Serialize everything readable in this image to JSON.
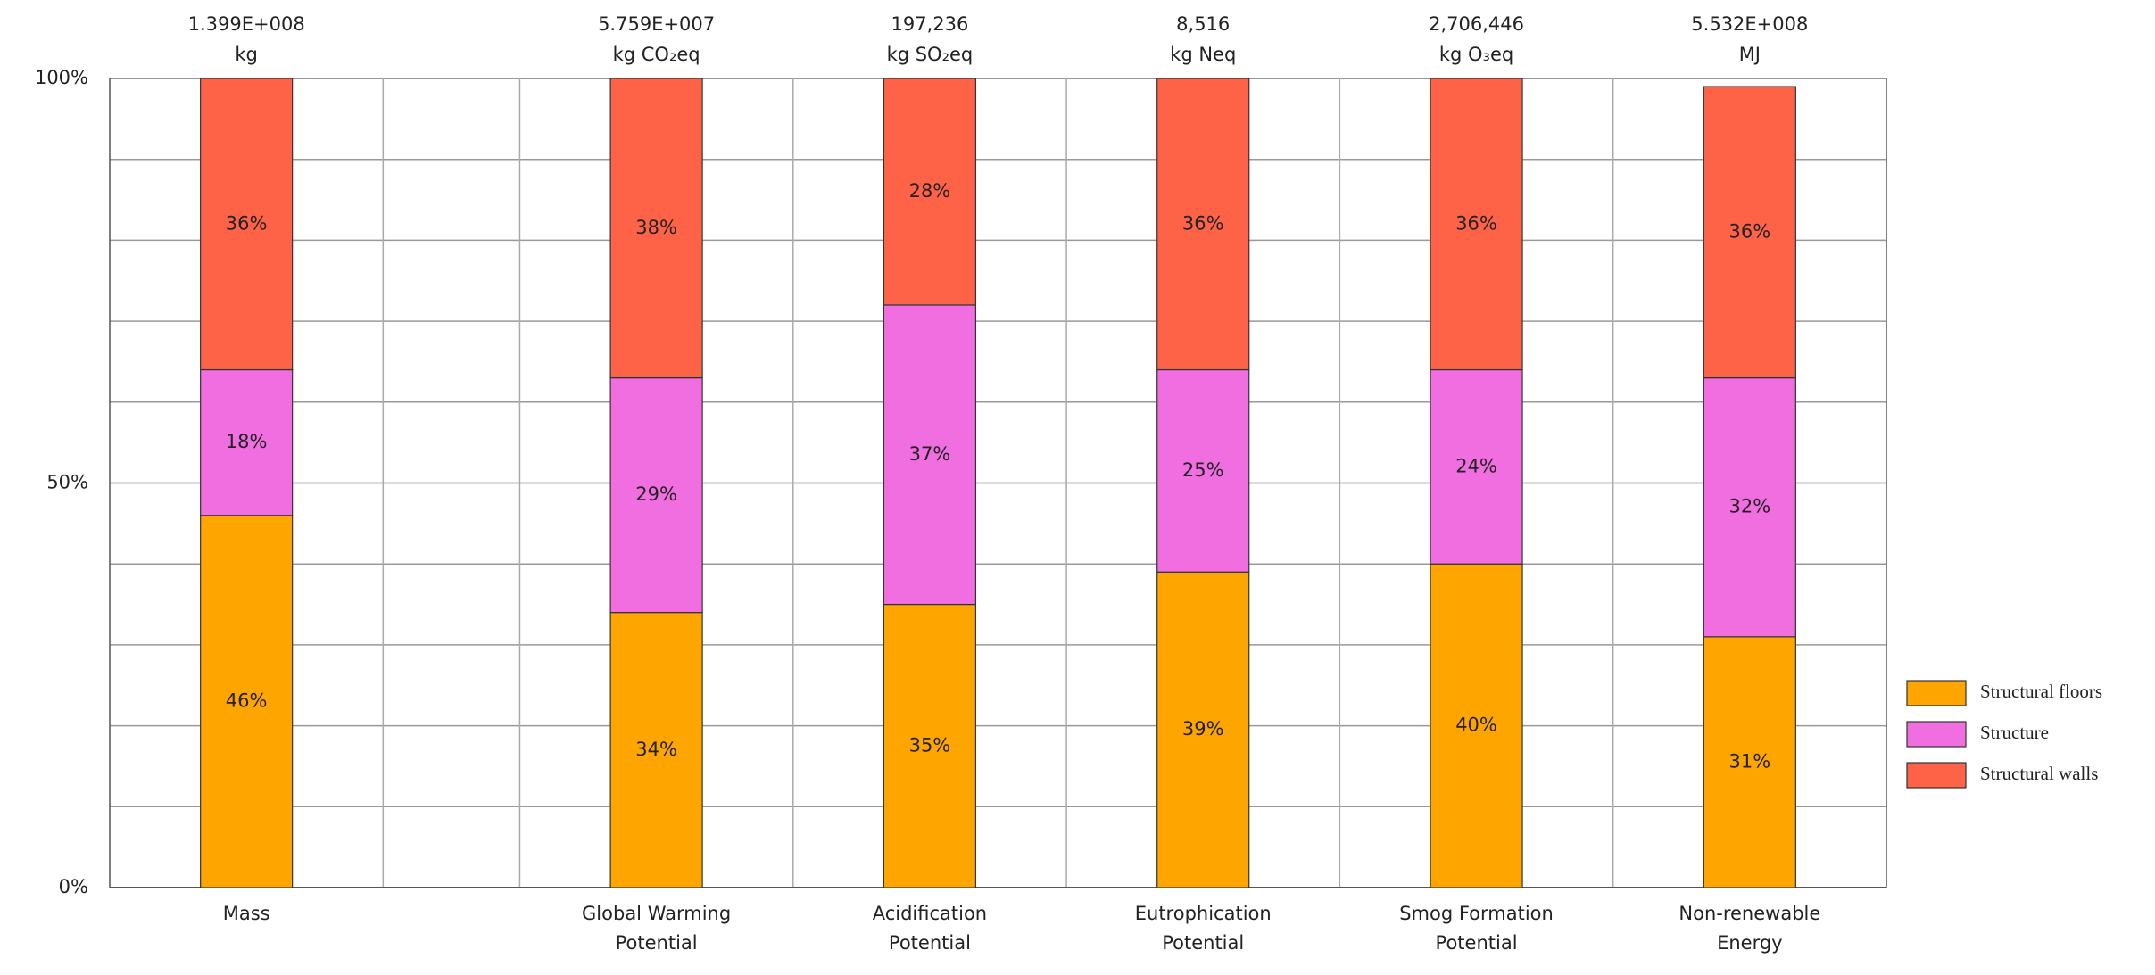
{
  "chart_data": {
    "type": "stacked_bar_100",
    "categories": [
      [
        "Mass"
      ],
      [
        "Global Warming",
        "Potential"
      ],
      [
        "Acidification",
        "Potential"
      ],
      [
        "Eutrophication",
        "Potential"
      ],
      [
        "Smog Formation",
        "Potential"
      ],
      [
        "Non-renewable",
        "Energy"
      ]
    ],
    "totals": [
      "1.399E+008",
      "5.759E+007",
      "197,236",
      "8,516",
      "2,706,446",
      "5.532E+008"
    ],
    "units": [
      "kg",
      "kg CO₂eq",
      "kg SO₂eq",
      "kg Neq",
      "kg O₃eq",
      "MJ"
    ],
    "series": [
      {
        "name": "Structural floors",
        "color": "#FFA500",
        "values": [
          46,
          34,
          35,
          39,
          40,
          31
        ],
        "value_labels": [
          "46%",
          "34%",
          "35%",
          "39%",
          "40%",
          "31%"
        ]
      },
      {
        "name": "Structure",
        "color": "#F06EE0",
        "values": [
          18,
          29,
          37,
          25,
          24,
          32
        ],
        "value_labels": [
          "18%",
          "29%",
          "37%",
          "25%",
          "24%",
          "32%"
        ]
      },
      {
        "name": "Structural walls",
        "color": "#FF6347",
        "values": [
          36,
          38,
          28,
          36,
          36,
          36
        ],
        "value_labels": [
          "36%",
          "38%",
          "28%",
          "36%",
          "36%",
          "36%"
        ]
      }
    ],
    "ylim": [
      0,
      100
    ],
    "yticks": [
      {
        "value": 0,
        "label": "0%"
      },
      {
        "value": 50,
        "label": "50%"
      },
      {
        "value": 100,
        "label": "100%"
      }
    ],
    "minor_yticks": [
      10,
      20,
      30,
      40,
      60,
      70,
      80,
      90
    ],
    "grid": true,
    "legend": "right"
  }
}
